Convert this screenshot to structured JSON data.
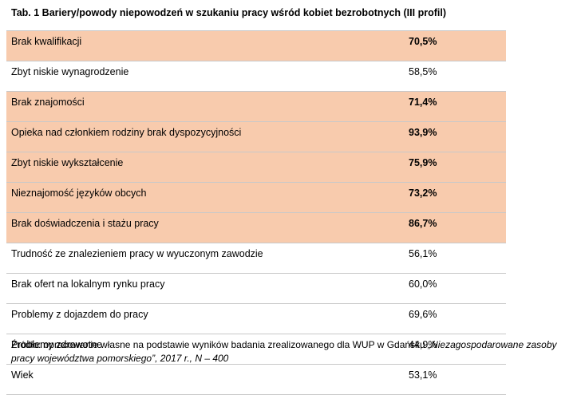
{
  "title": "Tab. 1 Bariery/powody  niepowodzeń  w szukaniu  pracy wśród kobiet bezrobotnych  (III profil)",
  "rows": [
    {
      "label": "Brak  kwalifikacji",
      "value": "70,5%",
      "highlight": true
    },
    {
      "label": "Zbyt niskie wynagrodzenie",
      "value": "58,5%",
      "highlight": false
    },
    {
      "label": "Brak  znajomości",
      "value": "71,4%",
      "highlight": true
    },
    {
      "label": "Opieka nad członkiem rodziny brak dyspozycyjności",
      "value": "93,9%",
      "highlight": true
    },
    {
      "label": "Zbyt niskie wykształcenie",
      "value": "75,9%",
      "highlight": true
    },
    {
      "label": "Nieznajomość języków obcych",
      "value": "73,2%",
      "highlight": true
    },
    {
      "label": "Brak doświadczenia  i stażu pracy",
      "value": "86,7%",
      "highlight": true
    },
    {
      "label": "Trudność ze znalezieniem pracy w wyuczonym zawodzie",
      "value": "56,1%",
      "highlight": false
    },
    {
      "label": "Brak  ofert na lokalnym  rynku pracy",
      "value": "60,0%",
      "highlight": false
    },
    {
      "label": "Problemy  z dojazdem do pracy",
      "value": "69,6%",
      "highlight": false
    },
    {
      "label": "Problemy  zdrowotne",
      "value": "44,9%",
      "highlight": false
    },
    {
      "label": "Wiek",
      "value": "53,1%",
      "highlight": false
    }
  ],
  "source": {
    "prefix": "Źródło: opracowanie własne na podstawie wyników badania zrealizowanego dla WUP w Gdańsku ",
    "italic": "„Niezagospodarowane zasoby pracy województwa pomorskiego”, 2017 r., N – 400"
  },
  "colors": {
    "highlight": "#f8cbad",
    "border": "#c8c8c8"
  }
}
